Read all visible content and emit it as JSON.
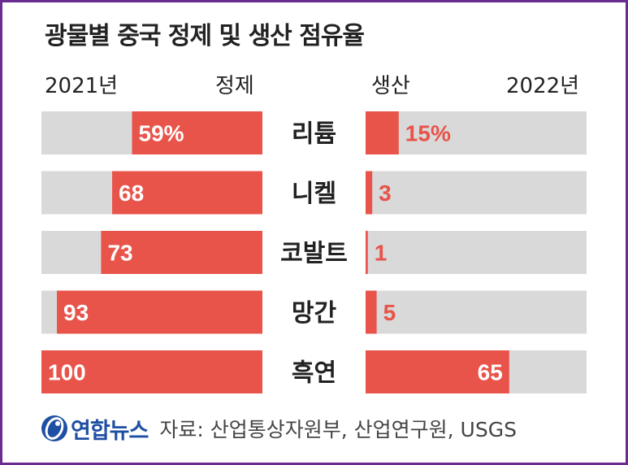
{
  "title": "광물별 중국 정제 및 생산 점유율",
  "headers": {
    "left_year": "2021년",
    "left_label": "정제",
    "right_label": "생산",
    "right_year": "2022년"
  },
  "colors": {
    "bar": "#e8534a",
    "track": "#d9d9d9",
    "text_dark": "#222222",
    "frame": "#6a2c91"
  },
  "chart_data": {
    "type": "bar",
    "title": "광물별 중국 정제 및 생산 점유율",
    "categories": [
      "리튬",
      "니켈",
      "코발트",
      "망간",
      "흑연"
    ],
    "series": [
      {
        "name": "정제",
        "year": "2021년",
        "values": [
          59,
          68,
          73,
          93,
          100
        ],
        "labels": [
          "59%",
          "68",
          "73",
          "93",
          "100"
        ]
      },
      {
        "name": "생산",
        "year": "2022년",
        "values": [
          15,
          3,
          1,
          5,
          65
        ],
        "labels": [
          "15%",
          "3",
          "1",
          "5",
          "65"
        ]
      }
    ],
    "ylim": [
      0,
      100
    ],
    "unit": "%"
  },
  "footer": {
    "logo_text": "연합뉴스",
    "logo_icon": "yonhap-logo-icon",
    "source": "자료: 산업통상자원부, 산업연구원, USGS"
  }
}
